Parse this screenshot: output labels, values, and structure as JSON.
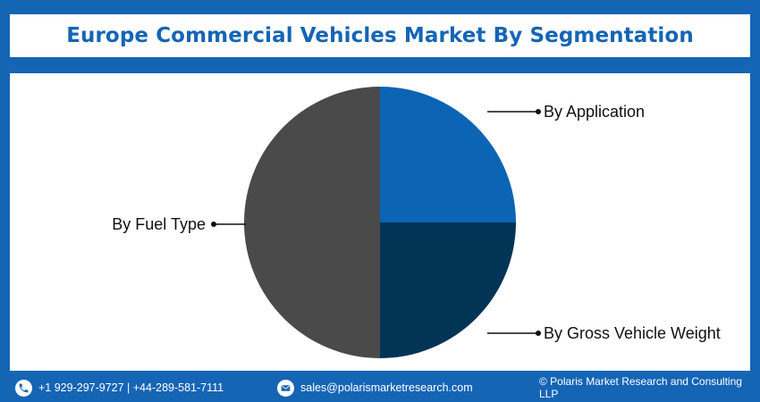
{
  "title": "Europe Commercial Vehicles Market By Segmentation",
  "chart_data": {
    "type": "pie",
    "title": "Europe Commercial Vehicles Market By Segmentation",
    "slices": [
      {
        "label": "By Application",
        "value": 25,
        "color": "#0b64b4"
      },
      {
        "label": "By Gross Vehicle Weight",
        "value": 25,
        "color": "#023455"
      },
      {
        "label": "By Fuel Type",
        "value": 50,
        "color": "#4a4a4a"
      }
    ]
  },
  "footer": {
    "phone": "+1 929-297-9727 | +44-289-581-7111",
    "email": "sales@polarismarketresearch.com",
    "copyright": "© Polaris Market Research and Consulting LLP"
  },
  "icons": {
    "phone": "phone-icon",
    "email": "email-icon"
  }
}
